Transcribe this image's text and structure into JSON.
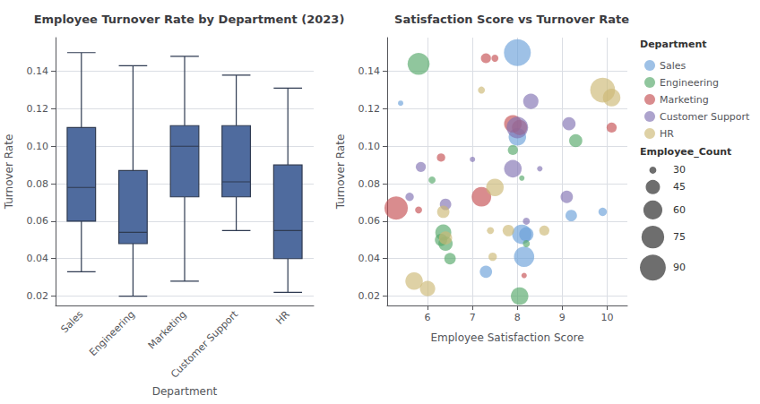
{
  "chart_data": [
    {
      "type": "box",
      "title": "Employee Turnover Rate by Department (2023)",
      "xlabel": "Department",
      "ylabel": "Turnover Rate",
      "categories": [
        "Sales",
        "Engineering",
        "Marketing",
        "Customer Support",
        "HR"
      ],
      "values": [
        [
          0.033,
          0.06,
          0.078,
          0.11,
          0.15
        ],
        [
          0.02,
          0.048,
          0.054,
          0.087,
          0.143
        ],
        [
          0.028,
          0.073,
          0.1,
          0.111,
          0.148
        ],
        [
          0.055,
          0.073,
          0.081,
          0.111,
          0.138
        ],
        [
          0.022,
          0.04,
          0.055,
          0.09,
          0.131
        ]
      ],
      "color": "#4f6b9e",
      "ylim": [
        0.015,
        0.158
      ],
      "yticks": [
        0.02,
        0.04,
        0.06,
        0.08,
        {
          "value": 0.1,
          "label": "0.10"
        },
        0.12,
        0.14
      ],
      "grid": "y"
    },
    {
      "type": "scatter",
      "title": "Satisfaction Score vs Turnover Rate",
      "xlabel": "Employee Satisfaction Score",
      "ylabel": "Turnover Rate",
      "series": [
        {
          "name": "Sales",
          "color": "#6a9fd8",
          "x": [
            7.3,
            8.0,
            8.0,
            8.1,
            8.2,
            8.15,
            9.2,
            5.4,
            9.9
          ],
          "values": [
            0.033,
            0.15,
            0.105,
            0.053,
            0.053,
            0.041,
            0.063,
            0.123,
            0.065
          ],
          "sizes": [
            40,
            95,
            55,
            62,
            45,
            65,
            38,
            28,
            32
          ]
        },
        {
          "name": "Engineering",
          "color": "#55a868",
          "x": [
            5.8,
            6.1,
            6.3,
            6.35,
            6.4,
            6.5,
            7.9,
            8.1,
            8.2,
            8.05,
            9.3
          ],
          "values": [
            0.144,
            0.082,
            0.05,
            0.054,
            0.048,
            0.04,
            0.098,
            0.083,
            0.048,
            0.02,
            0.103
          ],
          "sizes": [
            72,
            30,
            40,
            50,
            45,
            38,
            35,
            28,
            30,
            55,
            42
          ]
        },
        {
          "name": "Marketing",
          "color": "#c44e52",
          "x": [
            5.3,
            5.8,
            6.3,
            7.2,
            7.3,
            7.5,
            7.9,
            8.05,
            8.15,
            10.1
          ],
          "values": [
            0.067,
            0.066,
            0.094,
            0.073,
            0.147,
            0.147,
            0.112,
            0.11,
            0.031,
            0.11
          ],
          "sizes": [
            78,
            30,
            32,
            62,
            35,
            30,
            55,
            48,
            28,
            35
          ]
        },
        {
          "name": "Customer Support",
          "color": "#8172b2",
          "x": [
            5.6,
            5.85,
            6.4,
            7.0,
            7.9,
            8.0,
            8.2,
            8.3,
            8.5,
            9.1,
            9.15
          ],
          "values": [
            0.073,
            0.089,
            0.069,
            0.093,
            0.088,
            0.11,
            0.06,
            0.124,
            0.088,
            0.073,
            0.112
          ],
          "sizes": [
            32,
            35,
            38,
            28,
            55,
            70,
            30,
            48,
            28,
            40,
            42
          ]
        },
        {
          "name": "HR",
          "color": "#ccb974",
          "x": [
            5.7,
            6.0,
            6.35,
            6.4,
            7.2,
            7.4,
            7.45,
            7.5,
            7.8,
            8.6,
            9.9,
            10.1
          ],
          "values": [
            0.028,
            0.024,
            0.065,
            0.051,
            0.13,
            0.055,
            0.041,
            0.078,
            0.055,
            0.055,
            0.13,
            0.126
          ],
          "sizes": [
            55,
            48,
            40,
            42,
            30,
            30,
            32,
            55,
            38,
            35,
            85,
            55
          ]
        }
      ],
      "xlim": [
        5.1,
        10.45
      ],
      "xticks": [
        6,
        7,
        8,
        9,
        10
      ],
      "ylim": [
        0.015,
        0.158
      ],
      "yticks": [
        0.02,
        0.04,
        0.06,
        0.08,
        {
          "value": 0.1,
          "label": "0.10"
        },
        0.12,
        0.14
      ],
      "grid": true,
      "legend": "right",
      "legend_title": "Department",
      "size_title": "Employee_Count",
      "size_legend": [
        30,
        45,
        60,
        75,
        90
      ]
    }
  ]
}
